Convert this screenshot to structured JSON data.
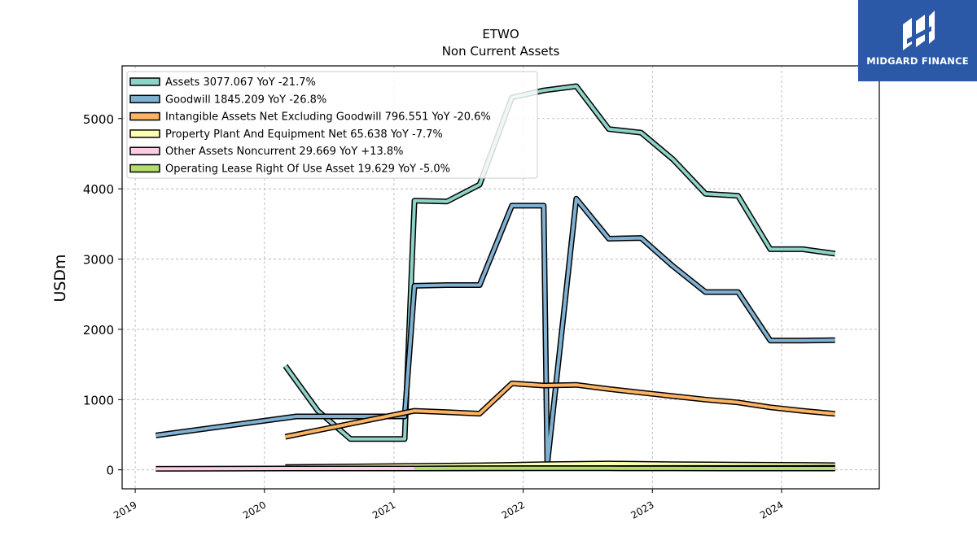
{
  "brand": {
    "name": "MIDGARD FINANCE",
    "bg_color": "#2c58a8"
  },
  "chart_data": {
    "type": "line",
    "title": "ETWO",
    "subtitle": "Non Current  Assets",
    "ylabel": "USDm",
    "xlabel": "",
    "xlim": [
      "2018-11-25",
      "2024-10-03"
    ],
    "ylim": [
      -270,
      5750
    ],
    "x_ticks": [
      "2019",
      "2020",
      "2021",
      "2022",
      "2023",
      "2024"
    ],
    "y_ticks": [
      0,
      1000,
      2000,
      3000,
      4000,
      5000
    ],
    "grid": true,
    "legend_position": "top-left",
    "series": [
      {
        "name": "Assets  3077.067 YoY -21.7%",
        "color": "#8dd3c7",
        "points": [
          [
            "2020-02-29",
            1480
          ],
          [
            "2020-05-31",
            840
          ],
          [
            "2020-08-31",
            440
          ],
          [
            "2020-11-30",
            440
          ],
          [
            "2021-01-31",
            440
          ],
          [
            "2021-02-28",
            3830
          ],
          [
            "2021-05-31",
            3820
          ],
          [
            "2021-08-31",
            4060
          ],
          [
            "2021-11-30",
            5300
          ],
          [
            "2022-02-28",
            5400
          ],
          [
            "2022-05-31",
            5460
          ],
          [
            "2022-08-31",
            4850
          ],
          [
            "2022-11-30",
            4800
          ],
          [
            "2023-02-28",
            4420
          ],
          [
            "2023-05-31",
            3930
          ],
          [
            "2023-08-31",
            3900
          ],
          [
            "2023-11-30",
            3140
          ],
          [
            "2024-02-29",
            3140
          ],
          [
            "2024-05-31",
            3077
          ]
        ]
      },
      {
        "name": "Goodwill  1845.209 YoY -26.8%",
        "color": "#80b1d3",
        "points": [
          [
            "2019-02-28",
            490
          ],
          [
            "2020-03-31",
            760
          ],
          [
            "2021-01-31",
            760
          ],
          [
            "2021-02-28",
            2620
          ],
          [
            "2021-05-31",
            2630
          ],
          [
            "2021-08-31",
            2630
          ],
          [
            "2021-11-30",
            3760
          ],
          [
            "2022-02-28",
            3760
          ],
          [
            "2022-03-10",
            80
          ],
          [
            "2022-05-31",
            3860
          ],
          [
            "2022-08-31",
            3290
          ],
          [
            "2022-11-30",
            3300
          ],
          [
            "2023-02-28",
            2900
          ],
          [
            "2023-05-31",
            2530
          ],
          [
            "2023-08-31",
            2530
          ],
          [
            "2023-11-30",
            1840
          ],
          [
            "2024-02-29",
            1840
          ],
          [
            "2024-05-31",
            1845
          ]
        ]
      },
      {
        "name": "Intangible Assets Net Excluding Goodwill  796.551 YoY -20.6%",
        "color": "#fdb462",
        "points": [
          [
            "2020-02-29",
            470
          ],
          [
            "2021-02-28",
            840
          ],
          [
            "2021-05-31",
            820
          ],
          [
            "2021-08-31",
            800
          ],
          [
            "2021-11-30",
            1230
          ],
          [
            "2022-02-28",
            1200
          ],
          [
            "2022-05-31",
            1210
          ],
          [
            "2022-08-31",
            1150
          ],
          [
            "2022-11-30",
            1100
          ],
          [
            "2023-02-28",
            1050
          ],
          [
            "2023-05-31",
            1000
          ],
          [
            "2023-08-31",
            960
          ],
          [
            "2023-11-30",
            890
          ],
          [
            "2024-02-29",
            840
          ],
          [
            "2024-05-31",
            797
          ]
        ]
      },
      {
        "name": "Property Plant And Equipment Net  65.638 YoY -7.7%",
        "color": "#ffffb3",
        "points": [
          [
            "2020-02-29",
            40
          ],
          [
            "2021-02-28",
            55
          ],
          [
            "2021-08-31",
            65
          ],
          [
            "2022-02-28",
            80
          ],
          [
            "2022-08-31",
            90
          ],
          [
            "2023-02-28",
            80
          ],
          [
            "2023-08-31",
            75
          ],
          [
            "2024-02-29",
            70
          ],
          [
            "2024-05-31",
            66
          ]
        ]
      },
      {
        "name": "Other Assets Noncurrent  29.669 YoY +13.8%",
        "color": "#fccde5",
        "points": [
          [
            "2019-02-28",
            15
          ],
          [
            "2020-02-29",
            20
          ],
          [
            "2021-02-28",
            20
          ],
          [
            "2022-02-28",
            25
          ],
          [
            "2023-02-28",
            26
          ],
          [
            "2024-02-29",
            28
          ],
          [
            "2024-05-31",
            30
          ]
        ]
      },
      {
        "name": "Operating Lease Right Of Use Asset  19.629 YoY -5.0%",
        "color": "#b3de69",
        "points": [
          [
            "2021-02-28",
            20
          ],
          [
            "2021-08-31",
            22
          ],
          [
            "2022-02-28",
            22
          ],
          [
            "2022-08-31",
            22
          ],
          [
            "2023-02-28",
            21
          ],
          [
            "2023-08-31",
            20
          ],
          [
            "2024-02-29",
            20
          ],
          [
            "2024-05-31",
            20
          ]
        ]
      }
    ]
  }
}
